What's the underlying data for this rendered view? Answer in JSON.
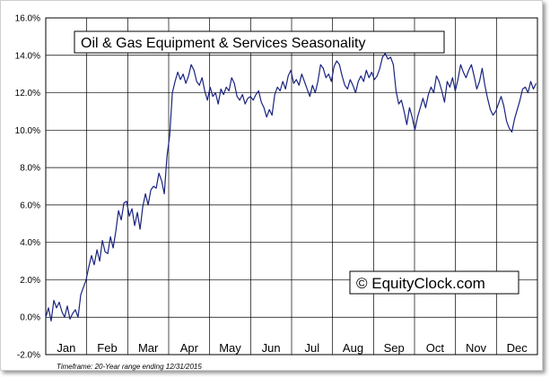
{
  "chart_data": {
    "type": "line",
    "title": "Oil & Gas Equipment & Services Seasonality",
    "watermark": "© EquityClock.com",
    "footnote": "Timeframe: 20-Year range ending 12/31/2015",
    "categories": [
      "Jan",
      "Feb",
      "Mar",
      "Apr",
      "May",
      "Jun",
      "Jul",
      "Aug",
      "Sep",
      "Oct",
      "Nov",
      "Dec"
    ],
    "y_ticks": [
      "-2.0%",
      "0.0%",
      "2.0%",
      "4.0%",
      "6.0%",
      "8.0%",
      "10.0%",
      "12.0%",
      "14.0%",
      "16.0%"
    ],
    "ylim": [
      -2,
      16
    ],
    "xlim": [
      1,
      366
    ],
    "grid": true,
    "line_color": "#1a237e",
    "series": [
      {
        "x": [
          1,
          3,
          5,
          7,
          9,
          11,
          13,
          15,
          17,
          19,
          21,
          23,
          25,
          27,
          29,
          31,
          33,
          35,
          37,
          39,
          41,
          43,
          45,
          47,
          49,
          51,
          53,
          55,
          57,
          59,
          61,
          63,
          65,
          67,
          69,
          71,
          73,
          75,
          77,
          79,
          81,
          83,
          85,
          87,
          89,
          91,
          93,
          95,
          97,
          99,
          101,
          103,
          105,
          107,
          109,
          111,
          113,
          115,
          117,
          119,
          121,
          123,
          125,
          127,
          129,
          131,
          133,
          135,
          137,
          139,
          141,
          143,
          145,
          147,
          149,
          151,
          153,
          155,
          157,
          159,
          161,
          163,
          165,
          167,
          169,
          171,
          173,
          175,
          177,
          179,
          181,
          183,
          185,
          187,
          189,
          191,
          193,
          195,
          197,
          199,
          201,
          203,
          205,
          207,
          209,
          211,
          213,
          215,
          217,
          219,
          221,
          223,
          225,
          227,
          229,
          231,
          233,
          235,
          237,
          239,
          241,
          243,
          245,
          247,
          249,
          251,
          253,
          255,
          257,
          259,
          261,
          263,
          265,
          267,
          269,
          271,
          273,
          275,
          277,
          279,
          281,
          283,
          285,
          287,
          289,
          291,
          293,
          295,
          297,
          299,
          301,
          303,
          305,
          307,
          309,
          311,
          313,
          315,
          317,
          319,
          321,
          323,
          325,
          327,
          329,
          331,
          333,
          335,
          337,
          339,
          341,
          343,
          345,
          347,
          349,
          351,
          353,
          355,
          357,
          359,
          361,
          363,
          365
        ],
        "y": [
          0.0,
          0.5,
          -0.2,
          0.9,
          0.5,
          0.8,
          0.3,
          0.0,
          0.6,
          -0.1,
          0.2,
          0.4,
          0.0,
          1.2,
          1.6,
          2.0,
          2.7,
          3.3,
          2.8,
          3.6,
          3.0,
          4.1,
          3.5,
          3.4,
          4.3,
          3.7,
          4.6,
          5.7,
          5.2,
          6.1,
          6.2,
          5.4,
          5.8,
          4.9,
          5.6,
          4.7,
          5.9,
          6.6,
          6.0,
          6.8,
          7.0,
          6.9,
          7.7,
          7.3,
          6.6,
          8.6,
          9.7,
          12.0,
          12.6,
          13.1,
          12.7,
          13.0,
          12.5,
          12.9,
          13.5,
          13.2,
          12.6,
          12.4,
          12.8,
          12.1,
          11.6,
          12.3,
          11.8,
          12.0,
          11.4,
          12.2,
          11.9,
          12.3,
          12.1,
          12.8,
          12.5,
          11.8,
          11.6,
          11.9,
          11.4,
          11.7,
          11.8,
          11.6,
          11.9,
          12.1,
          11.5,
          11.2,
          10.7,
          11.1,
          10.8,
          11.9,
          12.3,
          12.1,
          12.6,
          12.2,
          12.9,
          13.2,
          12.5,
          12.7,
          12.4,
          13.0,
          12.6,
          12.2,
          11.8,
          12.4,
          12.0,
          12.6,
          13.5,
          13.3,
          12.8,
          13.0,
          12.6,
          13.4,
          13.7,
          13.5,
          12.9,
          12.4,
          12.2,
          12.7,
          12.4,
          12.0,
          12.6,
          12.9,
          12.6,
          13.2,
          12.8,
          13.1,
          12.7,
          12.9,
          13.3,
          13.9,
          14.1,
          13.8,
          13.9,
          13.5,
          12.1,
          11.4,
          11.6,
          11.0,
          10.3,
          11.2,
          10.7,
          10.0,
          10.7,
          11.2,
          11.7,
          11.2,
          11.9,
          12.3,
          12.0,
          12.9,
          12.6,
          12.1,
          11.5,
          12.6,
          12.3,
          12.8,
          12.1,
          12.7,
          13.5,
          13.1,
          12.8,
          13.2,
          13.5,
          12.9,
          12.2,
          12.6,
          13.3,
          12.4,
          11.7,
          11.1,
          10.8,
          11.0,
          11.4,
          11.8,
          11.3,
          10.5,
          10.1,
          9.9,
          10.6,
          11.1,
          11.6,
          12.2,
          12.3,
          12.0,
          12.6,
          12.2,
          12.5
        ]
      }
    ]
  }
}
